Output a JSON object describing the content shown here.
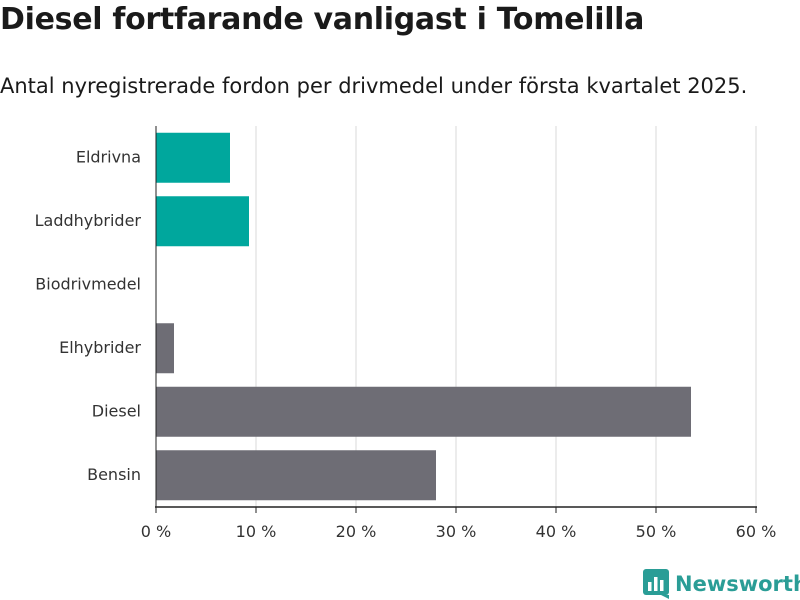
{
  "header": {
    "title": "Diesel fortfarande vanligast i Tomelilla",
    "subtitle": "Antal nyregistrerade fordon per drivmedel under första kvartalet 2025."
  },
  "brand": {
    "name": "Newsworthy",
    "color": "#2a9d96",
    "icon": "bar-chart-logo-icon"
  },
  "chart_data": {
    "type": "bar",
    "orientation": "horizontal",
    "title": "",
    "xlabel": "",
    "ylabel": "",
    "categories": [
      "Eldrivna",
      "Laddhybrider",
      "Biodrivmedel",
      "Elhybrider",
      "Diesel",
      "Bensin"
    ],
    "values": [
      7.4,
      9.3,
      0,
      1.8,
      53.5,
      28.0
    ],
    "colors": [
      "#00a79d",
      "#00a79d",
      "#00a79d",
      "#6e6d75",
      "#6e6d75",
      "#6e6d75"
    ],
    "xlim": [
      0,
      60
    ],
    "xticks": [
      0,
      10,
      20,
      30,
      40,
      50,
      60
    ],
    "xtick_labels": [
      "0 %",
      "10 %",
      "20 %",
      "30 %",
      "40 %",
      "50 %",
      "60 %"
    ],
    "grid": "vertical"
  }
}
